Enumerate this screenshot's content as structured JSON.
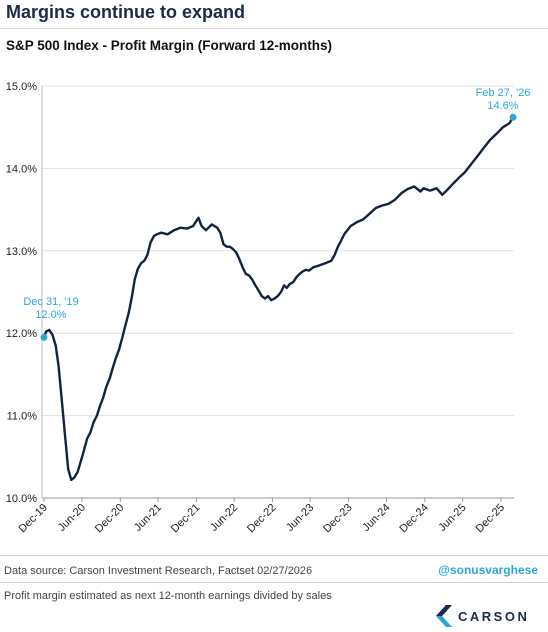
{
  "header": {
    "title": "Margins continue to expand",
    "subtitle": "S&P 500 Index - Profit Margin (Forward 12-months)"
  },
  "footer": {
    "source": "Data source: Carson Investment Research, Factset   02/27/2026",
    "handle": "@sonusvarghese",
    "note": "Profit margin estimated as next 12-month earnings divided by sales",
    "logo_text": "CARSON"
  },
  "colors": {
    "line": "#13233f",
    "accent": "#2aa7d8",
    "grid": "#e3e3e3",
    "title": "#1b2a4a"
  },
  "chart_data": {
    "type": "line",
    "title": "S&P 500 Index - Profit Margin (Forward 12-months)",
    "ylabel": "",
    "xlabel": "",
    "ylim": [
      10.0,
      15.0
    ],
    "yticks": [
      "10.0%",
      "11.0%",
      "12.0%",
      "13.0%",
      "14.0%",
      "15.0%"
    ],
    "ytick_values": [
      10.0,
      11.0,
      12.0,
      13.0,
      14.0,
      15.0
    ],
    "xticks": [
      "Dec-19",
      "Jun-20",
      "Dec-20",
      "Jun-21",
      "Dec-21",
      "Jun-22",
      "Dec-22",
      "Jun-23",
      "Dec-23",
      "Jun-24",
      "Dec-24",
      "Jun-25",
      "Dec-25"
    ],
    "xtick_values": [
      "2019-12-31",
      "2020-06-30",
      "2020-12-31",
      "2021-06-30",
      "2021-12-31",
      "2022-06-30",
      "2022-12-31",
      "2023-06-30",
      "2023-12-31",
      "2024-06-30",
      "2024-12-31",
      "2025-06-30",
      "2025-12-31"
    ],
    "grid": true,
    "series": [
      {
        "points": [
          [
            "2019-12-31",
            11.95
          ],
          [
            "2020-01-10",
            12.02
          ],
          [
            "2020-01-25",
            12.04
          ],
          [
            "2020-02-10",
            11.98
          ],
          [
            "2020-02-25",
            11.85
          ],
          [
            "2020-03-10",
            11.6
          ],
          [
            "2020-03-25",
            11.2
          ],
          [
            "2020-04-10",
            10.75
          ],
          [
            "2020-04-25",
            10.35
          ],
          [
            "2020-05-10",
            10.22
          ],
          [
            "2020-05-25",
            10.25
          ],
          [
            "2020-06-10",
            10.32
          ],
          [
            "2020-06-25",
            10.45
          ],
          [
            "2020-07-10",
            10.58
          ],
          [
            "2020-07-25",
            10.72
          ],
          [
            "2020-08-10",
            10.8
          ],
          [
            "2020-08-25",
            10.92
          ],
          [
            "2020-09-10",
            11.0
          ],
          [
            "2020-09-25",
            11.12
          ],
          [
            "2020-10-10",
            11.22
          ],
          [
            "2020-10-25",
            11.35
          ],
          [
            "2020-11-10",
            11.45
          ],
          [
            "2020-11-25",
            11.58
          ],
          [
            "2020-12-10",
            11.7
          ],
          [
            "2020-12-25",
            11.8
          ],
          [
            "2021-01-10",
            11.95
          ],
          [
            "2021-01-25",
            12.1
          ],
          [
            "2021-02-10",
            12.25
          ],
          [
            "2021-02-25",
            12.45
          ],
          [
            "2021-03-10",
            12.65
          ],
          [
            "2021-03-25",
            12.78
          ],
          [
            "2021-04-10",
            12.85
          ],
          [
            "2021-04-25",
            12.88
          ],
          [
            "2021-05-10",
            12.95
          ],
          [
            "2021-05-25",
            13.1
          ],
          [
            "2021-06-10",
            13.18
          ],
          [
            "2021-06-25",
            13.2
          ],
          [
            "2021-07-15",
            13.22
          ],
          [
            "2021-08-15",
            13.2
          ],
          [
            "2021-09-15",
            13.25
          ],
          [
            "2021-10-15",
            13.28
          ],
          [
            "2021-11-15",
            13.27
          ],
          [
            "2021-12-15",
            13.3
          ],
          [
            "2022-01-10",
            13.4
          ],
          [
            "2022-01-25",
            13.3
          ],
          [
            "2022-02-15",
            13.25
          ],
          [
            "2022-03-15",
            13.32
          ],
          [
            "2022-04-10",
            13.28
          ],
          [
            "2022-04-25",
            13.22
          ],
          [
            "2022-05-10",
            13.08
          ],
          [
            "2022-05-25",
            13.05
          ],
          [
            "2022-06-10",
            13.05
          ],
          [
            "2022-06-25",
            13.02
          ],
          [
            "2022-07-10",
            12.98
          ],
          [
            "2022-07-25",
            12.9
          ],
          [
            "2022-08-10",
            12.8
          ],
          [
            "2022-08-25",
            12.72
          ],
          [
            "2022-09-10",
            12.7
          ],
          [
            "2022-09-25",
            12.65
          ],
          [
            "2022-10-10",
            12.58
          ],
          [
            "2022-10-25",
            12.52
          ],
          [
            "2022-11-10",
            12.45
          ],
          [
            "2022-11-25",
            12.42
          ],
          [
            "2022-12-10",
            12.45
          ],
          [
            "2022-12-25",
            12.4
          ],
          [
            "2023-01-10",
            12.42
          ],
          [
            "2023-01-25",
            12.45
          ],
          [
            "2023-02-10",
            12.5
          ],
          [
            "2023-02-25",
            12.58
          ],
          [
            "2023-03-10",
            12.55
          ],
          [
            "2023-03-25",
            12.6
          ],
          [
            "2023-04-10",
            12.62
          ],
          [
            "2023-04-25",
            12.68
          ],
          [
            "2023-05-10",
            12.72
          ],
          [
            "2023-05-25",
            12.75
          ],
          [
            "2023-06-10",
            12.77
          ],
          [
            "2023-06-25",
            12.76
          ],
          [
            "2023-07-15",
            12.8
          ],
          [
            "2023-08-10",
            12.82
          ],
          [
            "2023-09-10",
            12.85
          ],
          [
            "2023-10-10",
            12.88
          ],
          [
            "2023-10-25",
            12.95
          ],
          [
            "2023-11-10",
            13.05
          ],
          [
            "2023-11-25",
            13.12
          ],
          [
            "2023-12-10",
            13.2
          ],
          [
            "2024-01-10",
            13.3
          ],
          [
            "2024-02-10",
            13.35
          ],
          [
            "2024-03-10",
            13.38
          ],
          [
            "2024-04-10",
            13.45
          ],
          [
            "2024-05-10",
            13.52
          ],
          [
            "2024-06-10",
            13.55
          ],
          [
            "2024-07-10",
            13.57
          ],
          [
            "2024-08-10",
            13.62
          ],
          [
            "2024-09-10",
            13.7
          ],
          [
            "2024-10-10",
            13.75
          ],
          [
            "2024-11-10",
            13.78
          ],
          [
            "2024-12-10",
            13.72
          ],
          [
            "2024-12-25",
            13.76
          ],
          [
            "2025-01-25",
            13.73
          ],
          [
            "2025-02-25",
            13.76
          ],
          [
            "2025-03-25",
            13.68
          ],
          [
            "2025-04-10",
            13.72
          ],
          [
            "2025-05-10",
            13.8
          ],
          [
            "2025-06-10",
            13.88
          ],
          [
            "2025-07-10",
            13.95
          ],
          [
            "2025-08-10",
            14.05
          ],
          [
            "2025-09-10",
            14.15
          ],
          [
            "2025-10-10",
            14.25
          ],
          [
            "2025-11-10",
            14.35
          ],
          [
            "2025-12-10",
            14.42
          ],
          [
            "2026-01-10",
            14.5
          ],
          [
            "2026-02-10",
            14.55
          ],
          [
            "2026-02-27",
            14.62
          ]
        ]
      }
    ],
    "annotations": [
      {
        "date_label": "Dec 31, '19",
        "value_label": "12.0%",
        "x": "2019-12-31",
        "y": 11.95
      },
      {
        "date_label": "Feb 27, '26",
        "value_label": "14.6%",
        "x": "2026-02-27",
        "y": 14.62
      }
    ]
  }
}
